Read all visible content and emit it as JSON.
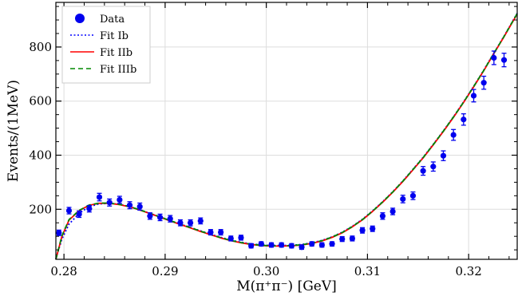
{
  "chart_data": {
    "type": "scatter",
    "xlabel": "M(π⁺π⁻) [GeV]",
    "ylabel": "Events/(1MeV)",
    "xlim": [
      0.2792,
      0.3248
    ],
    "ylim": [
      15,
      965
    ],
    "xticks": [
      0.28,
      0.29,
      0.3,
      0.31,
      0.32
    ],
    "xtick_labels": [
      "0.28",
      "0.29",
      "0.30",
      "0.31",
      "0.32"
    ],
    "yticks": [
      200,
      400,
      600,
      800
    ],
    "ytick_labels": [
      "200",
      "400",
      "600",
      "800"
    ],
    "grid": true,
    "legend_position": "top-left",
    "legend": [
      {
        "label": "Data",
        "style": "marker",
        "color": "#0000ee"
      },
      {
        "label": "Fit Ib",
        "style": "dotted",
        "color": "#0000ff"
      },
      {
        "label": "Fit IIb",
        "style": "solid",
        "color": "#ff0000"
      },
      {
        "label": "Fit IIIb",
        "style": "dashed",
        "color": "#008800"
      }
    ],
    "data_points": {
      "x": [
        0.2795,
        0.2805,
        0.2815,
        0.2825,
        0.2835,
        0.2845,
        0.2855,
        0.2865,
        0.2875,
        0.2885,
        0.2895,
        0.2905,
        0.2915,
        0.2925,
        0.2935,
        0.2945,
        0.2955,
        0.2965,
        0.2975,
        0.2985,
        0.2995,
        0.3005,
        0.3015,
        0.3025,
        0.3035,
        0.3045,
        0.3055,
        0.3065,
        0.3075,
        0.3085,
        0.3095,
        0.3105,
        0.3115,
        0.3125,
        0.3135,
        0.3145,
        0.3155,
        0.3165,
        0.3175,
        0.3185,
        0.3195,
        0.3205,
        0.3215,
        0.3225,
        0.3235
      ],
      "y": [
        113,
        195,
        182,
        202,
        245,
        225,
        235,
        215,
        210,
        175,
        170,
        165,
        150,
        150,
        157,
        115,
        115,
        92,
        95,
        65,
        72,
        68,
        68,
        65,
        60,
        72,
        68,
        72,
        90,
        92,
        122,
        128,
        175,
        192,
        238,
        250,
        342,
        358,
        398,
        475,
        532,
        620,
        668,
        760,
        752
      ],
      "err": [
        10,
        12,
        12,
        12,
        14,
        13,
        13,
        13,
        13,
        12,
        12,
        12,
        11,
        11,
        11,
        10,
        10,
        9,
        9,
        8,
        8,
        8,
        8,
        8,
        8,
        8,
        8,
        8,
        9,
        9,
        10,
        10,
        12,
        12,
        14,
        14,
        16,
        17,
        18,
        20,
        21,
        23,
        24,
        25,
        25
      ]
    },
    "curves": [
      {
        "name": "Fit Ib",
        "style": "dotted",
        "color": "#0000ff",
        "x": [
          0.2792,
          0.2798,
          0.2805,
          0.2815,
          0.2825,
          0.2835,
          0.2845,
          0.2855,
          0.2865,
          0.2875,
          0.2885,
          0.2895,
          0.2905,
          0.2915,
          0.2925,
          0.2935,
          0.2945,
          0.2955,
          0.2965,
          0.2975,
          0.2985,
          0.2995,
          0.3005,
          0.3015,
          0.3025,
          0.3035,
          0.3045,
          0.3055,
          0.3065,
          0.3075,
          0.3085,
          0.3095,
          0.3105,
          0.3115,
          0.3125,
          0.3135,
          0.3145,
          0.3155,
          0.3165,
          0.3175,
          0.3185,
          0.3195,
          0.3205,
          0.3215,
          0.3225,
          0.3235,
          0.3248
        ],
        "y": [
          18,
          90,
          145,
          185,
          210,
          220,
          222,
          218,
          210,
          198,
          185,
          172,
          158,
          145,
          133,
          120,
          108,
          96,
          86,
          78,
          72,
          68,
          66,
          66,
          67,
          70,
          76,
          85,
          98,
          115,
          137,
          163,
          194,
          228,
          265,
          305,
          348,
          392,
          440,
          490,
          542,
          597,
          655,
          715,
          778,
          840,
          925
        ]
      },
      {
        "name": "Fit IIb",
        "style": "solid",
        "color": "#ff0000",
        "x": [
          0.2792,
          0.2798,
          0.2805,
          0.2815,
          0.2825,
          0.2835,
          0.2845,
          0.2855,
          0.2865,
          0.2875,
          0.2885,
          0.2895,
          0.2905,
          0.2915,
          0.2925,
          0.2935,
          0.2945,
          0.2955,
          0.2965,
          0.2975,
          0.2985,
          0.2995,
          0.3005,
          0.3015,
          0.3025,
          0.3035,
          0.3045,
          0.3055,
          0.3065,
          0.3075,
          0.3085,
          0.3095,
          0.3105,
          0.3115,
          0.3125,
          0.3135,
          0.3145,
          0.3155,
          0.3165,
          0.3175,
          0.3185,
          0.3195,
          0.3205,
          0.3215,
          0.3225,
          0.3235,
          0.3248
        ],
        "y": [
          15,
          100,
          160,
          195,
          215,
          222,
          222,
          217,
          209,
          197,
          184,
          171,
          157,
          144,
          131,
          118,
          106,
          94,
          84,
          76,
          70,
          66,
          64,
          64,
          65,
          68,
          74,
          83,
          96,
          113,
          135,
          161,
          192,
          226,
          263,
          303,
          346,
          390,
          438,
          488,
          540,
          595,
          653,
          713,
          776,
          838,
          922
        ]
      },
      {
        "name": "Fit IIIb",
        "style": "dashed",
        "color": "#008800",
        "x": [
          0.2792,
          0.2798,
          0.2805,
          0.2815,
          0.2825,
          0.2835,
          0.2845,
          0.2855,
          0.2865,
          0.2875,
          0.2885,
          0.2895,
          0.2905,
          0.2915,
          0.2925,
          0.2935,
          0.2945,
          0.2955,
          0.2965,
          0.2975,
          0.2985,
          0.2995,
          0.3005,
          0.3015,
          0.3025,
          0.3035,
          0.3045,
          0.3055,
          0.3065,
          0.3075,
          0.3085,
          0.3095,
          0.3105,
          0.3115,
          0.3125,
          0.3135,
          0.3145,
          0.3155,
          0.3165,
          0.3175,
          0.3185,
          0.3195,
          0.3205,
          0.3215,
          0.3225,
          0.3235,
          0.3248
        ],
        "y": [
          15,
          102,
          162,
          196,
          216,
          223,
          223,
          218,
          210,
          198,
          185,
          172,
          158,
          145,
          132,
          119,
          107,
          95,
          85,
          77,
          71,
          67,
          65,
          65,
          66,
          69,
          75,
          84,
          97,
          114,
          136,
          162,
          193,
          227,
          264,
          304,
          347,
          391,
          439,
          489,
          541,
          596,
          654,
          714,
          777,
          839,
          924
        ]
      }
    ]
  }
}
